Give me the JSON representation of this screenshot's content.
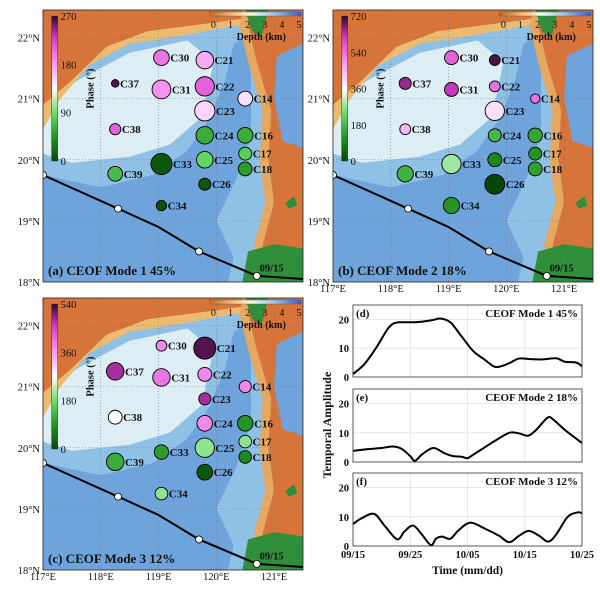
{
  "colors": {
    "track": "#000000",
    "curve": "#000000",
    "grid": "#9a9a9a"
  },
  "map": {
    "lon_ticks": [
      "117°E",
      "118°E",
      "119°E",
      "120°E",
      "121°E"
    ],
    "lat_ticks": [
      "22°N",
      "21°N",
      "20°N",
      "19°N",
      "18°N"
    ],
    "lon_range": [
      117,
      121.5
    ],
    "lat_range": [
      18,
      22.45
    ],
    "depth_colorbar": {
      "label": "Depth (km)",
      "ticks": [
        "0",
        "1",
        "2",
        "3",
        "4",
        "5"
      ]
    },
    "phase_label": "Phase (°)",
    "track": {
      "points": [
        [
          117,
          19.75
        ],
        [
          118.3,
          19.2
        ],
        [
          119.0,
          18.9
        ],
        [
          119.7,
          18.5
        ],
        [
          120.7,
          18.1
        ],
        [
          121.5,
          18.05
        ]
      ],
      "markers": [
        [
          117,
          19.75
        ],
        [
          118.3,
          19.2
        ],
        [
          119.7,
          18.5
        ],
        [
          120.7,
          18.1
        ]
      ],
      "date_label": "09/15"
    }
  },
  "chart_data": [
    {
      "type": "scatter",
      "title": "(a) CEOF Mode 1 45%",
      "phase_max": 270,
      "phase_ticks": [
        "270",
        "180",
        "90",
        "0"
      ],
      "stations": [
        {
          "name": "C30",
          "lon": 119.05,
          "lat": 21.67,
          "phase": 200,
          "amp": 0.65
        },
        {
          "name": "C21",
          "lon": 119.8,
          "lat": 21.63,
          "phase": 175,
          "amp": 0.75
        },
        {
          "name": "C37",
          "lon": 118.25,
          "lat": 21.25,
          "phase": 260,
          "amp": 0.2
        },
        {
          "name": "C31",
          "lon": 119.05,
          "lat": 21.15,
          "phase": 185,
          "amp": 0.82
        },
        {
          "name": "C22",
          "lon": 119.8,
          "lat": 21.2,
          "phase": 210,
          "amp": 0.85
        },
        {
          "name": "C14",
          "lon": 120.5,
          "lat": 21.0,
          "phase": 150,
          "amp": 0.6
        },
        {
          "name": "C23",
          "lon": 119.8,
          "lat": 20.8,
          "phase": 155,
          "amp": 0.9
        },
        {
          "name": "C38",
          "lon": 118.25,
          "lat": 20.5,
          "phase": 210,
          "amp": 0.4
        },
        {
          "name": "C24",
          "lon": 119.8,
          "lat": 20.4,
          "phase": 60,
          "amp": 0.75
        },
        {
          "name": "C16",
          "lon": 120.5,
          "lat": 20.4,
          "phase": 60,
          "amp": 0.65
        },
        {
          "name": "C17",
          "lon": 120.5,
          "lat": 20.1,
          "phase": 80,
          "amp": 0.5
        },
        {
          "name": "C33",
          "lon": 119.05,
          "lat": 19.93,
          "phase": 10,
          "amp": 0.95
        },
        {
          "name": "C25",
          "lon": 119.8,
          "lat": 20.0,
          "phase": 85,
          "amp": 0.7
        },
        {
          "name": "C18",
          "lon": 120.5,
          "lat": 19.85,
          "phase": 50,
          "amp": 0.55
        },
        {
          "name": "C39",
          "lon": 118.25,
          "lat": 19.77,
          "phase": 70,
          "amp": 0.6
        },
        {
          "name": "C26",
          "lon": 119.8,
          "lat": 19.6,
          "phase": 10,
          "amp": 0.45
        },
        {
          "name": "C34",
          "lon": 119.05,
          "lat": 19.25,
          "phase": 5,
          "amp": 0.35
        }
      ]
    },
    {
      "type": "scatter",
      "title": "(b) CEOF Mode 2 18%",
      "phase_max": 720,
      "phase_ticks": [
        "720",
        "540",
        "360",
        "180",
        "0"
      ],
      "stations": [
        {
          "name": "C30",
          "lon": 119.05,
          "lat": 21.67,
          "phase": 560,
          "amp": 0.55
        },
        {
          "name": "C21",
          "lon": 119.8,
          "lat": 21.63,
          "phase": 700,
          "amp": 0.38
        },
        {
          "name": "C37",
          "lon": 118.25,
          "lat": 21.25,
          "phase": 650,
          "amp": 0.45
        },
        {
          "name": "C31",
          "lon": 119.05,
          "lat": 21.15,
          "phase": 620,
          "amp": 0.55
        },
        {
          "name": "C22",
          "lon": 119.8,
          "lat": 21.2,
          "phase": 540,
          "amp": 0.38
        },
        {
          "name": "C14",
          "lon": 120.5,
          "lat": 21.0,
          "phase": 540,
          "amp": 0.3
        },
        {
          "name": "C23",
          "lon": 119.8,
          "lat": 20.8,
          "phase": 400,
          "amp": 0.85
        },
        {
          "name": "C38",
          "lon": 118.25,
          "lat": 20.5,
          "phase": 450,
          "amp": 0.38
        },
        {
          "name": "C24",
          "lon": 119.8,
          "lat": 20.4,
          "phase": 180,
          "amp": 0.5
        },
        {
          "name": "C16",
          "lon": 120.5,
          "lat": 20.4,
          "phase": 150,
          "amp": 0.58
        },
        {
          "name": "C17",
          "lon": 120.5,
          "lat": 20.1,
          "phase": 120,
          "amp": 0.5
        },
        {
          "name": "C33",
          "lon": 119.05,
          "lat": 19.93,
          "phase": 280,
          "amp": 0.85
        },
        {
          "name": "C25",
          "lon": 119.8,
          "lat": 20.0,
          "phase": 100,
          "amp": 0.55
        },
        {
          "name": "C18",
          "lon": 120.5,
          "lat": 19.85,
          "phase": 140,
          "amp": 0.55
        },
        {
          "name": "C39",
          "lon": 118.25,
          "lat": 19.77,
          "phase": 170,
          "amp": 0.68
        },
        {
          "name": "C26",
          "lon": 119.8,
          "lat": 19.6,
          "phase": 0,
          "amp": 0.88
        },
        {
          "name": "C34",
          "lon": 119.05,
          "lat": 19.25,
          "phase": 120,
          "amp": 0.68
        }
      ]
    },
    {
      "type": "scatter",
      "title": "(c) CEOF Mode 3 12%",
      "phase_max": 540,
      "phase_ticks": [
        "540",
        "360",
        "180",
        "0"
      ],
      "stations": [
        {
          "name": "C30",
          "lon": 119.05,
          "lat": 21.67,
          "phase": 380,
          "amp": 0.38
        },
        {
          "name": "C21",
          "lon": 119.8,
          "lat": 21.63,
          "phase": 520,
          "amp": 1.0
        },
        {
          "name": "C37",
          "lon": 118.25,
          "lat": 21.25,
          "phase": 480,
          "amp": 0.75
        },
        {
          "name": "C31",
          "lon": 119.05,
          "lat": 21.15,
          "phase": 400,
          "amp": 0.75
        },
        {
          "name": "C22",
          "lon": 119.8,
          "lat": 21.2,
          "phase": 380,
          "amp": 0.55
        },
        {
          "name": "C14",
          "lon": 120.5,
          "lat": 21.0,
          "phase": 380,
          "amp": 0.45
        },
        {
          "name": "C23",
          "lon": 119.8,
          "lat": 20.8,
          "phase": 480,
          "amp": 0.45
        },
        {
          "name": "C38",
          "lon": 118.25,
          "lat": 20.5,
          "phase": 270,
          "amp": 0.55
        },
        {
          "name": "C24",
          "lon": 119.8,
          "lat": 20.4,
          "phase": 380,
          "amp": 0.65
        },
        {
          "name": "C16",
          "lon": 120.5,
          "lat": 20.4,
          "phase": 90,
          "amp": 0.65
        },
        {
          "name": "C17",
          "lon": 120.5,
          "lat": 20.1,
          "phase": 200,
          "amp": 0.48
        },
        {
          "name": "C33",
          "lon": 119.05,
          "lat": 19.93,
          "phase": 100,
          "amp": 0.58
        },
        {
          "name": "C25",
          "lon": 119.8,
          "lat": 20.0,
          "phase": 200,
          "amp": 0.85
        },
        {
          "name": "C18",
          "lon": 120.5,
          "lat": 19.85,
          "phase": 80,
          "amp": 0.48
        },
        {
          "name": "C39",
          "lon": 118.25,
          "lat": 19.77,
          "phase": 120,
          "amp": 0.75
        },
        {
          "name": "C26",
          "lon": 119.8,
          "lat": 19.6,
          "phase": 20,
          "amp": 0.65
        },
        {
          "name": "C34",
          "lon": 119.05,
          "lat": 19.25,
          "phase": 200,
          "amp": 0.48
        }
      ]
    },
    {
      "type": "line",
      "panels": [
        {
          "label": "(d)",
          "title": "CEOF Mode 1 45%",
          "x": [
            0,
            2,
            4,
            6,
            7,
            8,
            10,
            12,
            14,
            15.3,
            17,
            19,
            21,
            23,
            24.7,
            26,
            27.5,
            29,
            31,
            33,
            35.5,
            37,
            39,
            40
          ],
          "y": [
            1,
            4.5,
            10,
            16.5,
            18.5,
            19,
            19,
            19.2,
            19.8,
            20.3,
            19,
            14,
            9,
            6,
            3.6,
            3.8,
            5,
            6.4,
            6.2,
            6.1,
            6.5,
            5.3,
            5,
            3.7
          ]
        },
        {
          "label": "(e)",
          "title": "CEOF Mode 2 18%",
          "x": [
            0,
            2,
            5,
            7,
            8.5,
            10,
            10.8,
            12,
            13.5,
            14.5,
            16,
            17.5,
            19,
            20,
            21,
            23,
            25,
            27.3,
            29,
            30.6,
            32,
            34,
            35,
            37,
            40
          ],
          "y": [
            3.8,
            4.3,
            4.8,
            5.3,
            4.5,
            2,
            0.4,
            2.5,
            4.5,
            4.6,
            3,
            2,
            1.8,
            1.3,
            2.5,
            5,
            7.5,
            10,
            9.8,
            9,
            11,
            15.2,
            14.5,
            11,
            6.5
          ]
        },
        {
          "label": "(f)",
          "title": "CEOF Mode 3 12%",
          "x": [
            0,
            1.5,
            3.7,
            5.5,
            7.7,
            9,
            10.5,
            12,
            13.6,
            14.5,
            15.6,
            17,
            18.5,
            20.5,
            23,
            25.5,
            27.3,
            29,
            30.7,
            32.5,
            34.1,
            35.5,
            37.5,
            39.2,
            40
          ],
          "y": [
            7.5,
            9.5,
            11,
            7,
            2.3,
            5,
            7,
            4,
            0.3,
            2.5,
            3.2,
            2.5,
            5.5,
            8,
            6,
            3.5,
            1.3,
            3.5,
            5.2,
            3.5,
            1.5,
            4,
            10,
            11.5,
            11.2
          ]
        }
      ],
      "xlabel": "Time (mm/dd)",
      "ylabel": "Temporal Amplitude",
      "x_ticks": [
        "09/15",
        "09/25",
        "10/05",
        "10/15",
        "10/25"
      ],
      "y_ticks": [
        "0",
        "10",
        "20"
      ],
      "xlim": [
        0,
        40
      ],
      "ylim": [
        0,
        25
      ],
      "grid": true
    }
  ]
}
